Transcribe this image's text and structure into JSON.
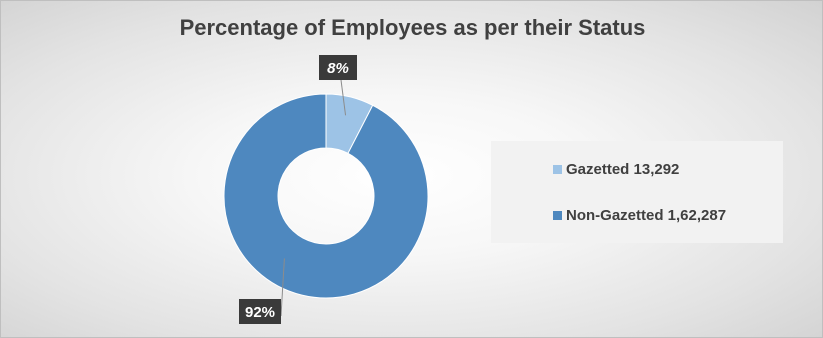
{
  "chart_data": {
    "type": "pie",
    "style": "doughnut",
    "title": "Percentage of Employees as per their Status",
    "series": [
      {
        "name": "Gazetted",
        "value": 13292,
        "value_label": "13,292",
        "percent": 8,
        "percent_label": "8%",
        "legend_label": "Gazetted 13,292",
        "color": "#9dc3e6"
      },
      {
        "name": "Non-Gazetted",
        "value": 162287,
        "value_label": "1,62,287",
        "percent": 92,
        "percent_label": "92%",
        "legend_label": "Non-Gazetted 1,62,287",
        "color": "#4e88bf"
      }
    ],
    "legend_position": "right",
    "data_label_style": {
      "background": "#3a3a3a",
      "text_color": "#ffffff"
    }
  }
}
